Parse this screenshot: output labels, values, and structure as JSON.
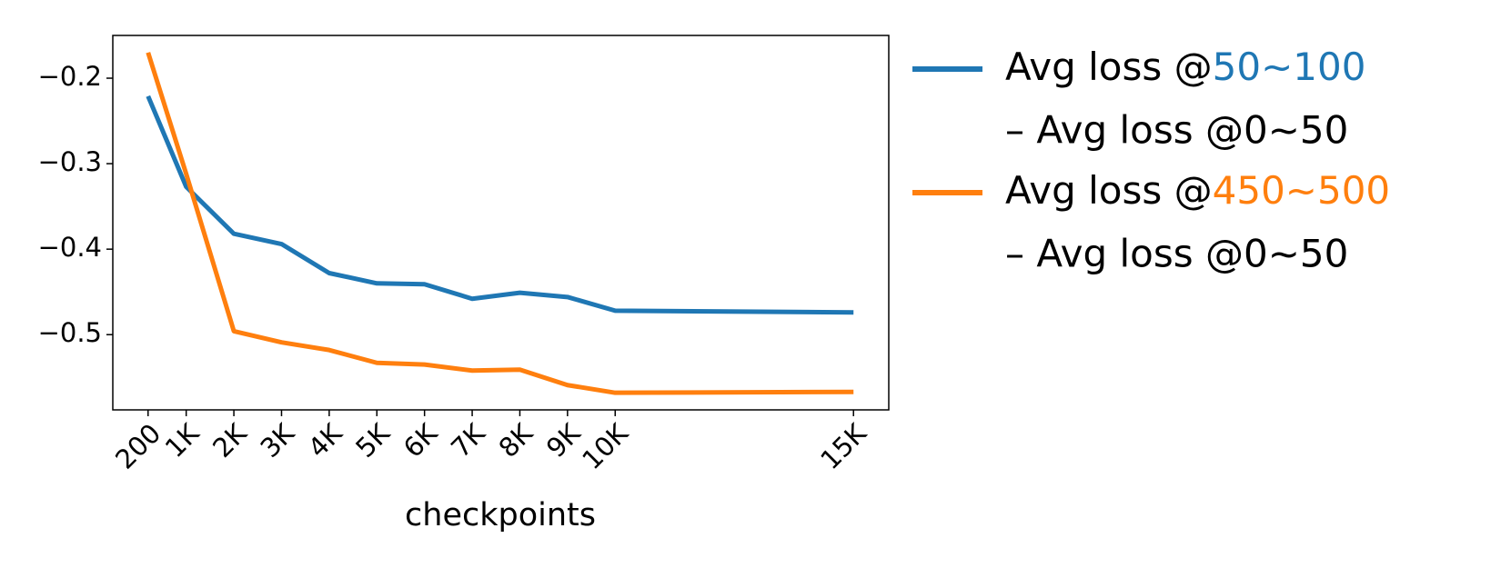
{
  "chart_data": {
    "type": "line",
    "xlabel": "checkpoints",
    "x": [
      200,
      1000,
      2000,
      3000,
      4000,
      5000,
      6000,
      7000,
      8000,
      9000,
      10000,
      15000
    ],
    "series": [
      {
        "label_parts": [
          "Avg loss @",
          "50~100",
          "– Avg loss @0~50"
        ],
        "color": "#1f77b4",
        "values": [
          -0.221,
          -0.327,
          -0.382,
          -0.394,
          -0.428,
          -0.44,
          -0.441,
          -0.458,
          -0.451,
          -0.456,
          -0.472,
          -0.474
        ]
      },
      {
        "label_parts": [
          "Avg loss @",
          "450~500",
          "– Avg loss @0~50"
        ],
        "color": "#ff7f0e",
        "values": [
          -0.17,
          -0.312,
          -0.496,
          -0.509,
          -0.518,
          -0.533,
          -0.535,
          -0.542,
          -0.541,
          -0.559,
          -0.568,
          -0.567
        ]
      }
    ],
    "xlim": [
      -540,
      15740
    ],
    "ylim": [
      -0.588,
      -0.15
    ],
    "xticks": [
      200,
      {
        "value": 1000,
        "label": "1K"
      },
      {
        "value": 2000,
        "label": "2K"
      },
      {
        "value": 3000,
        "label": "3K"
      },
      {
        "value": 4000,
        "label": "4K"
      },
      {
        "value": 5000,
        "label": "5K"
      },
      {
        "value": 6000,
        "label": "6K"
      },
      {
        "value": 7000,
        "label": "7K"
      },
      {
        "value": 8000,
        "label": "8K"
      },
      {
        "value": 9000,
        "label": "9K"
      },
      {
        "value": 10000,
        "label": "10K"
      },
      {
        "value": 15000,
        "label": "15K"
      }
    ],
    "yticks": [
      {
        "value": -0.2,
        "label": "−0.2"
      },
      {
        "value": -0.3,
        "label": "−0.3"
      },
      {
        "value": -0.4,
        "label": "−0.4"
      },
      {
        "value": -0.5,
        "label": "−0.5"
      }
    ],
    "grid": false
  }
}
